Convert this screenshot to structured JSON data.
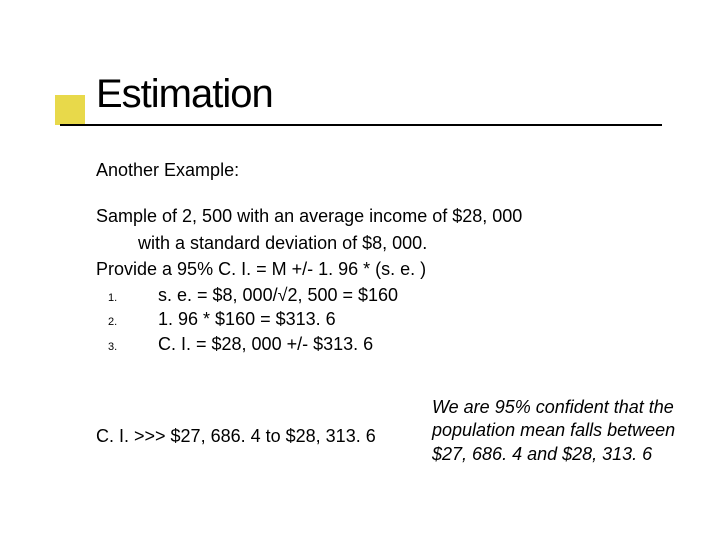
{
  "colors": {
    "accent": "#e8d94a",
    "text": "#000000",
    "background": "#ffffff",
    "underline": "#000000"
  },
  "typography": {
    "title_fontsize": 40,
    "body_fontsize": 18,
    "list_number_fontsize": 11,
    "font_family": "Verdana, Geneva, sans-serif"
  },
  "title": "Estimation",
  "subtitle": "Another Example:",
  "body": {
    "line1": "Sample of 2, 500 with an average income of $28, 000",
    "line2": "with a standard deviation of $8, 000.",
    "line3": "Provide a 95% C. I. = M +/- 1. 96 * (s. e. )"
  },
  "steps": [
    {
      "num": "1.",
      "text": "s. e. = $8, 000/√2, 500 = $160"
    },
    {
      "num": "2.",
      "text": "1. 96 * $160 = $313. 6"
    },
    {
      "num": "3.",
      "text": "C. I. = $28, 000 +/- $313. 6"
    }
  ],
  "result": "C. I. >>> $27, 686. 4 to $28, 313. 6",
  "note": "We are 95% confident that the population mean falls between $27, 686. 4 and $28, 313. 6"
}
